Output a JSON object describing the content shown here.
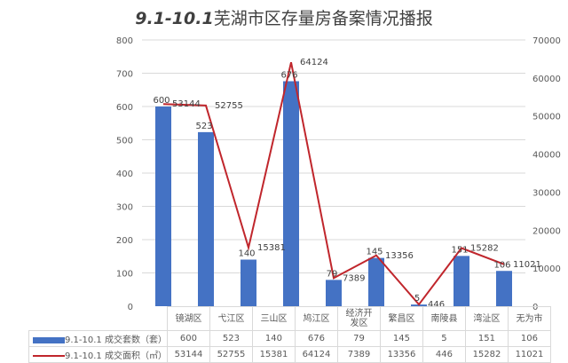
{
  "title": {
    "prefix": "9.1-10.1",
    "text": "芜湖市区存量房备案情况播报"
  },
  "chart_data": {
    "type": "bar+line",
    "title": "9.1-10.1芜湖市区存量房备案情况播报",
    "categories": [
      "镜湖区",
      "弋江区",
      "三山区",
      "鸠江区",
      "经济开发区",
      "繁昌区",
      "南陵县",
      "湾沚区",
      "无为市"
    ],
    "category_lines": [
      [
        "镜湖区"
      ],
      [
        "弋江区"
      ],
      [
        "三山区"
      ],
      [
        "鸠江区"
      ],
      [
        "经济开",
        "发区"
      ],
      [
        "繁昌区"
      ],
      [
        "南陵县"
      ],
      [
        "湾沚区"
      ],
      [
        "无为市"
      ]
    ],
    "series": [
      {
        "name": "9.1-10.1 成交套数（套）",
        "type": "bar",
        "axis": "left",
        "color": "#4472c4",
        "values": [
          600,
          523,
          140,
          676,
          79,
          145,
          5,
          151,
          106
        ]
      },
      {
        "name": "9.1-10.1 成交面积（㎡）",
        "type": "line",
        "axis": "right",
        "color": "#c0262c",
        "values": [
          53144,
          52755,
          15381,
          64124,
          7389,
          13356,
          446,
          15282,
          11021
        ]
      }
    ],
    "left_axis": {
      "ylim": [
        0,
        800
      ],
      "ticks": [
        0,
        100,
        200,
        300,
        400,
        500,
        600,
        700,
        800
      ]
    },
    "right_axis": {
      "ylim": [
        0,
        70000
      ],
      "ticks": [
        0,
        10000,
        20000,
        30000,
        40000,
        50000,
        60000,
        70000
      ]
    },
    "grid": true,
    "legend_position": "data-table-bottom",
    "xlabel": "",
    "ylabel": ""
  },
  "colors": {
    "bar": "#4472c4",
    "line": "#c0262c",
    "grid": "#d9d9d9",
    "text": "#595959"
  }
}
